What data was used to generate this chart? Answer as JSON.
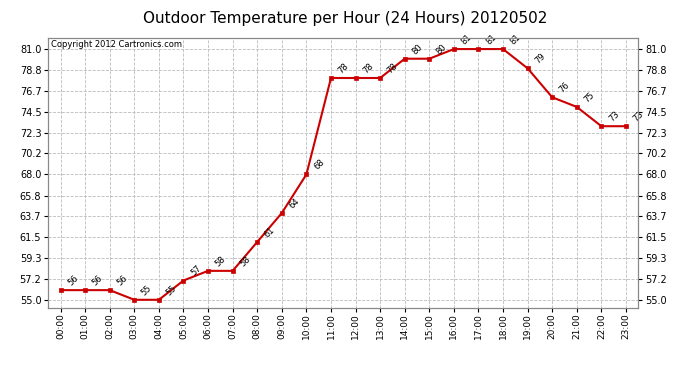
{
  "title": "Outdoor Temperature per Hour (24 Hours) 20120502",
  "copyright": "Copyright 2012 Cartronics.com",
  "hours": [
    "00:00",
    "01:00",
    "02:00",
    "03:00",
    "04:00",
    "05:00",
    "06:00",
    "07:00",
    "08:00",
    "09:00",
    "10:00",
    "11:00",
    "12:00",
    "13:00",
    "14:00",
    "15:00",
    "16:00",
    "17:00",
    "18:00",
    "19:00",
    "20:00",
    "21:00",
    "22:00",
    "23:00"
  ],
  "values": [
    56,
    56,
    56,
    55,
    55,
    57,
    58,
    58,
    61,
    64,
    68,
    78,
    78,
    78,
    80,
    80,
    81,
    81,
    81,
    79,
    76,
    75,
    73,
    73
  ],
  "line_color": "#cc0000",
  "marker_color": "#cc0000",
  "bg_color": "#ffffff",
  "grid_color": "#bbbbbb",
  "title_fontsize": 11,
  "yticks": [
    55.0,
    57.2,
    59.3,
    61.5,
    63.7,
    65.8,
    68.0,
    70.2,
    72.3,
    74.5,
    76.7,
    78.8,
    81.0
  ],
  "ylim": [
    54.2,
    82.2
  ]
}
